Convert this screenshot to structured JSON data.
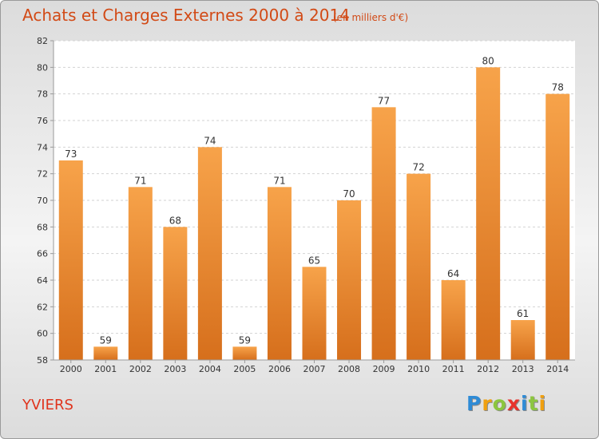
{
  "title": "Achats et Charges Externes 2000 à 2014",
  "subtitle": "(en milliers d'€)",
  "commune": "YVIERS",
  "logo": {
    "letters": [
      "P",
      "r",
      "o",
      "x",
      "i",
      "t",
      "i"
    ],
    "colors": [
      "#2e8bd6",
      "#f0a010",
      "#8cc63f",
      "#e8322c",
      "#2e8bd6",
      "#8cc63f",
      "#f0a010"
    ]
  },
  "colors": {
    "bar_top": "#f7a34a",
    "bar_bottom": "#d66f1c",
    "title": "#d24a16"
  },
  "chart_data": {
    "type": "bar",
    "categories": [
      "2000",
      "2001",
      "2002",
      "2003",
      "2004",
      "2005",
      "2006",
      "2007",
      "2008",
      "2009",
      "2010",
      "2011",
      "2012",
      "2013",
      "2014"
    ],
    "values": [
      73,
      59,
      71,
      68,
      74,
      59,
      71,
      65,
      70,
      77,
      72,
      64,
      80,
      61,
      78
    ],
    "ylim": [
      58,
      82
    ],
    "yticks": [
      58,
      60,
      62,
      64,
      66,
      68,
      70,
      72,
      74,
      76,
      78,
      80,
      82
    ],
    "grid": true
  }
}
